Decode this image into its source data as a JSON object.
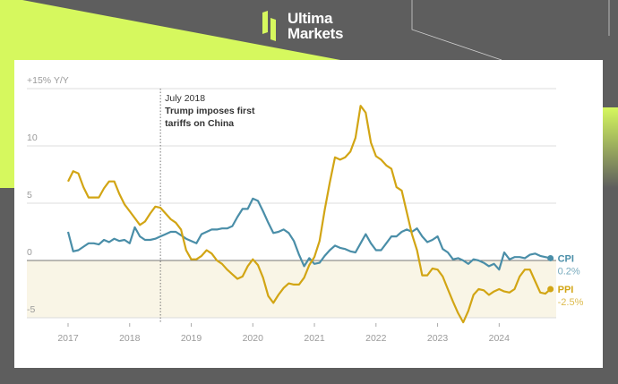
{
  "brand": {
    "line1": "Ultima",
    "line2": "Markets"
  },
  "colors": {
    "cpi": "#4a8ea8",
    "ppi": "#d2a514",
    "lime": "#d6f85e",
    "dark": "#5e5e5e",
    "negative_zone": "#f9f5e6"
  },
  "chart_data": {
    "type": "line",
    "ylabel": "+15% Y/Y",
    "ylim": [
      -5,
      15
    ],
    "y_ticks": [
      15,
      10,
      5,
      0,
      -5
    ],
    "y_tick_labels": [
      "+15% Y/Y",
      "10",
      "5",
      "0",
      "-5"
    ],
    "x_ticks": [
      "2017",
      "2018",
      "2019",
      "2020",
      "2021",
      "2022",
      "2023",
      "2024"
    ],
    "x_start": "2017-01",
    "frequency": "monthly",
    "grid": true,
    "annotation": {
      "date": "2018-07",
      "line1": "July 2018",
      "line2": "Trump imposes first",
      "line3": "tariffs on China"
    },
    "series": [
      {
        "name": "CPI",
        "end_label": "0.2%",
        "values": [
          2.5,
          0.8,
          0.9,
          1.2,
          1.5,
          1.5,
          1.4,
          1.8,
          1.6,
          1.9,
          1.7,
          1.8,
          1.5,
          2.9,
          2.1,
          1.8,
          1.8,
          1.9,
          2.1,
          2.3,
          2.5,
          2.5,
          2.2,
          1.9,
          1.7,
          1.5,
          2.3,
          2.5,
          2.7,
          2.7,
          2.8,
          2.8,
          3.0,
          3.8,
          4.5,
          4.5,
          5.4,
          5.2,
          4.3,
          3.3,
          2.4,
          2.5,
          2.7,
          2.4,
          1.7,
          0.5,
          -0.5,
          0.2,
          -0.3,
          -0.2,
          0.4,
          0.9,
          1.3,
          1.1,
          1.0,
          0.8,
          0.7,
          1.5,
          2.3,
          1.5,
          0.9,
          0.9,
          1.5,
          2.1,
          2.1,
          2.5,
          2.7,
          2.5,
          2.8,
          2.1,
          1.6,
          1.8,
          2.1,
          1.0,
          0.7,
          0.1,
          0.2,
          0.0,
          -0.3,
          0.1,
          0.0,
          -0.2,
          -0.5,
          -0.3,
          -0.8,
          0.7,
          0.1,
          0.3,
          0.3,
          0.2,
          0.5,
          0.6,
          0.4,
          0.3,
          0.2
        ]
      },
      {
        "name": "PPI",
        "end_label": "-2.5%",
        "values": [
          6.9,
          7.8,
          7.6,
          6.4,
          5.5,
          5.5,
          5.5,
          6.3,
          6.9,
          6.9,
          5.8,
          4.9,
          4.3,
          3.7,
          3.1,
          3.4,
          4.1,
          4.7,
          4.6,
          4.1,
          3.6,
          3.3,
          2.7,
          0.9,
          0.1,
          0.1,
          0.4,
          0.9,
          0.6,
          0.0,
          -0.3,
          -0.8,
          -1.2,
          -1.6,
          -1.4,
          -0.5,
          0.1,
          -0.4,
          -1.5,
          -3.1,
          -3.7,
          -3.0,
          -2.4,
          -2.0,
          -2.1,
          -2.1,
          -1.5,
          -0.4,
          0.3,
          1.7,
          4.4,
          6.8,
          9.0,
          8.8,
          9.0,
          9.5,
          10.7,
          13.5,
          12.9,
          10.3,
          9.1,
          8.8,
          8.3,
          8.0,
          6.4,
          6.1,
          4.2,
          2.3,
          0.9,
          -1.3,
          -1.3,
          -0.7,
          -0.8,
          -1.4,
          -2.5,
          -3.6,
          -4.6,
          -5.4,
          -4.4,
          -3.0,
          -2.5,
          -2.6,
          -3.0,
          -2.7,
          -2.5,
          -2.7,
          -2.8,
          -2.5,
          -1.4,
          -0.8,
          -0.8,
          -1.8,
          -2.8,
          -2.9,
          -2.5
        ]
      }
    ]
  }
}
